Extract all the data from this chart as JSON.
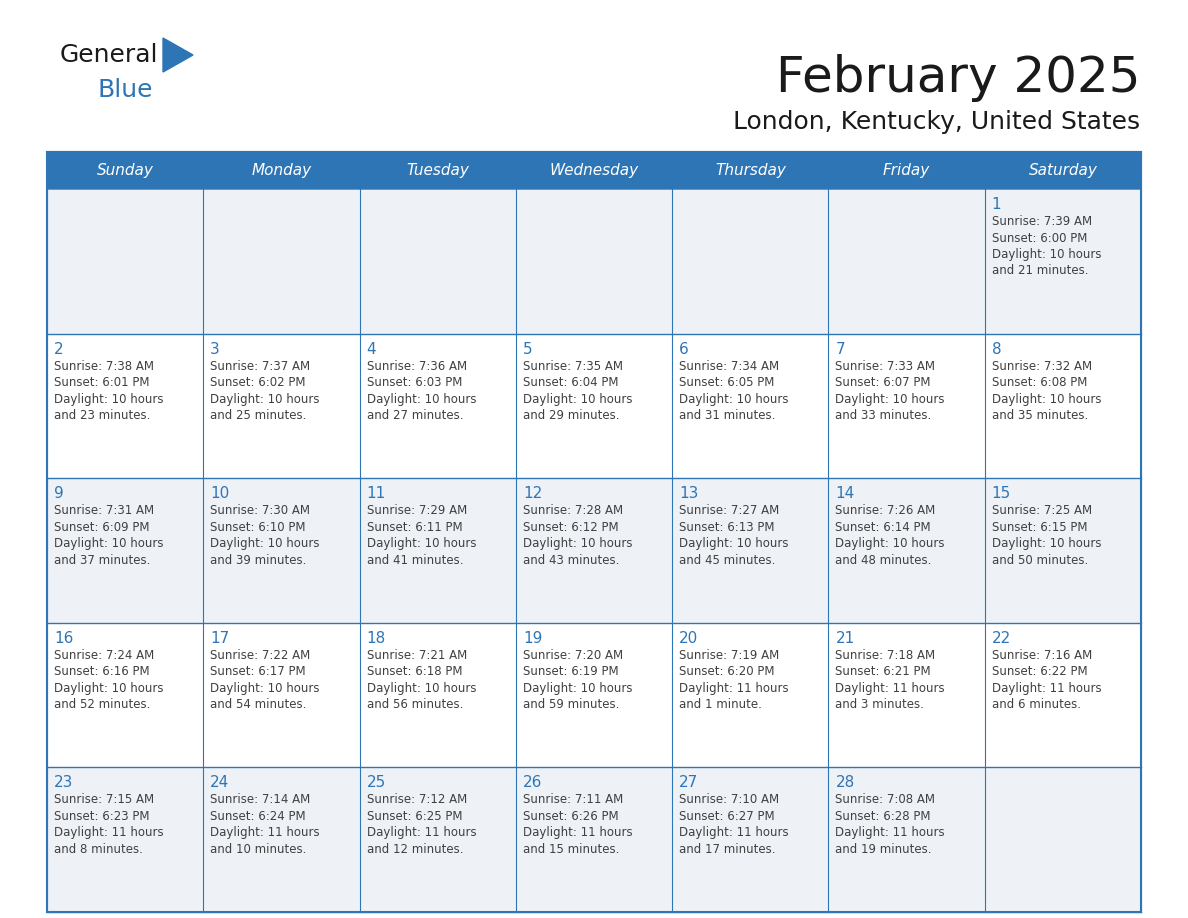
{
  "title": "February 2025",
  "subtitle": "London, Kentucky, United States",
  "header_color": "#2E75B6",
  "header_text_color": "#FFFFFF",
  "cell_border_color": "#2E75B6",
  "day_number_color": "#2E75B6",
  "info_text_color": "#404040",
  "background_color": "#FFFFFF",
  "row1_bg_color": "#EEF2F7",
  "days_of_week": [
    "Sunday",
    "Monday",
    "Tuesday",
    "Wednesday",
    "Thursday",
    "Friday",
    "Saturday"
  ],
  "calendar_data": [
    [
      null,
      null,
      null,
      null,
      null,
      null,
      {
        "day": 1,
        "sunrise": "7:39 AM",
        "sunset": "6:00 PM",
        "daylight": "10 hours\nand 21 minutes."
      }
    ],
    [
      {
        "day": 2,
        "sunrise": "7:38 AM",
        "sunset": "6:01 PM",
        "daylight": "10 hours\nand 23 minutes."
      },
      {
        "day": 3,
        "sunrise": "7:37 AM",
        "sunset": "6:02 PM",
        "daylight": "10 hours\nand 25 minutes."
      },
      {
        "day": 4,
        "sunrise": "7:36 AM",
        "sunset": "6:03 PM",
        "daylight": "10 hours\nand 27 minutes."
      },
      {
        "day": 5,
        "sunrise": "7:35 AM",
        "sunset": "6:04 PM",
        "daylight": "10 hours\nand 29 minutes."
      },
      {
        "day": 6,
        "sunrise": "7:34 AM",
        "sunset": "6:05 PM",
        "daylight": "10 hours\nand 31 minutes."
      },
      {
        "day": 7,
        "sunrise": "7:33 AM",
        "sunset": "6:07 PM",
        "daylight": "10 hours\nand 33 minutes."
      },
      {
        "day": 8,
        "sunrise": "7:32 AM",
        "sunset": "6:08 PM",
        "daylight": "10 hours\nand 35 minutes."
      }
    ],
    [
      {
        "day": 9,
        "sunrise": "7:31 AM",
        "sunset": "6:09 PM",
        "daylight": "10 hours\nand 37 minutes."
      },
      {
        "day": 10,
        "sunrise": "7:30 AM",
        "sunset": "6:10 PM",
        "daylight": "10 hours\nand 39 minutes."
      },
      {
        "day": 11,
        "sunrise": "7:29 AM",
        "sunset": "6:11 PM",
        "daylight": "10 hours\nand 41 minutes."
      },
      {
        "day": 12,
        "sunrise": "7:28 AM",
        "sunset": "6:12 PM",
        "daylight": "10 hours\nand 43 minutes."
      },
      {
        "day": 13,
        "sunrise": "7:27 AM",
        "sunset": "6:13 PM",
        "daylight": "10 hours\nand 45 minutes."
      },
      {
        "day": 14,
        "sunrise": "7:26 AM",
        "sunset": "6:14 PM",
        "daylight": "10 hours\nand 48 minutes."
      },
      {
        "day": 15,
        "sunrise": "7:25 AM",
        "sunset": "6:15 PM",
        "daylight": "10 hours\nand 50 minutes."
      }
    ],
    [
      {
        "day": 16,
        "sunrise": "7:24 AM",
        "sunset": "6:16 PM",
        "daylight": "10 hours\nand 52 minutes."
      },
      {
        "day": 17,
        "sunrise": "7:22 AM",
        "sunset": "6:17 PM",
        "daylight": "10 hours\nand 54 minutes."
      },
      {
        "day": 18,
        "sunrise": "7:21 AM",
        "sunset": "6:18 PM",
        "daylight": "10 hours\nand 56 minutes."
      },
      {
        "day": 19,
        "sunrise": "7:20 AM",
        "sunset": "6:19 PM",
        "daylight": "10 hours\nand 59 minutes."
      },
      {
        "day": 20,
        "sunrise": "7:19 AM",
        "sunset": "6:20 PM",
        "daylight": "11 hours\nand 1 minute."
      },
      {
        "day": 21,
        "sunrise": "7:18 AM",
        "sunset": "6:21 PM",
        "daylight": "11 hours\nand 3 minutes."
      },
      {
        "day": 22,
        "sunrise": "7:16 AM",
        "sunset": "6:22 PM",
        "daylight": "11 hours\nand 6 minutes."
      }
    ],
    [
      {
        "day": 23,
        "sunrise": "7:15 AM",
        "sunset": "6:23 PM",
        "daylight": "11 hours\nand 8 minutes."
      },
      {
        "day": 24,
        "sunrise": "7:14 AM",
        "sunset": "6:24 PM",
        "daylight": "11 hours\nand 10 minutes."
      },
      {
        "day": 25,
        "sunrise": "7:12 AM",
        "sunset": "6:25 PM",
        "daylight": "11 hours\nand 12 minutes."
      },
      {
        "day": 26,
        "sunrise": "7:11 AM",
        "sunset": "6:26 PM",
        "daylight": "11 hours\nand 15 minutes."
      },
      {
        "day": 27,
        "sunrise": "7:10 AM",
        "sunset": "6:27 PM",
        "daylight": "11 hours\nand 17 minutes."
      },
      {
        "day": 28,
        "sunrise": "7:08 AM",
        "sunset": "6:28 PM",
        "daylight": "11 hours\nand 19 minutes."
      },
      null
    ]
  ],
  "logo_text_general": "General",
  "logo_text_blue": "Blue",
  "logo_color_general": "#1a1a1a",
  "logo_color_blue": "#2E75B6",
  "logo_triangle_color": "#2E75B6",
  "title_fontsize": 36,
  "subtitle_fontsize": 18,
  "header_fontsize": 11,
  "day_num_fontsize": 11,
  "info_fontsize": 8.5
}
